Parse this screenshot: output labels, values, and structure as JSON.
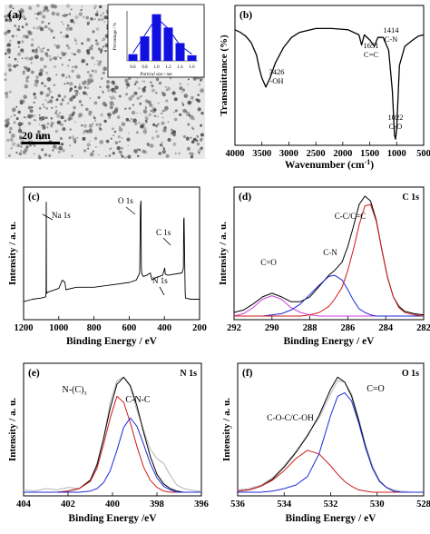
{
  "colors": {
    "black": "#000000",
    "red": "#d01818",
    "blue": "#1e2ad8",
    "magenta": "#d040d8",
    "gray": "#b4b4b4",
    "bar_blue": "#1010e0",
    "tem_light": "#e8e8e8",
    "tem_dark": "#505050"
  },
  "chart_data": [
    {
      "id": "a",
      "type": "image+bar",
      "panel_label": "(a)",
      "scale_bar_label": "20 nm",
      "inset": {
        "type": "bar",
        "ylabel": "Percentage / %",
        "xlabel": "Partical size / nm",
        "x_ticks": [
          "0.6",
          "0.8",
          "1.0",
          "1.2",
          "1.4",
          "1.6"
        ],
        "categories": [
          0.6,
          0.8,
          1.0,
          1.2,
          1.4,
          1.6
        ],
        "values": [
          6,
          22,
          42,
          30,
          16,
          5
        ],
        "trend": [
          7,
          23,
          39,
          29,
          14,
          6
        ],
        "ylim": [
          0,
          45
        ]
      }
    },
    {
      "id": "b",
      "type": "line",
      "panel_label": "(b)",
      "xlabel": "Wavenumber (cm",
      "xlabel_sup": "-1",
      "xlabel_end": ")",
      "ylabel": "Transmittance (%)",
      "xlim": [
        4000,
        500
      ],
      "x_ticks": [
        4000,
        3500,
        3000,
        2500,
        2000,
        1500,
        1000,
        500
      ],
      "ylim": [
        0,
        100
      ],
      "series": [
        {
          "x": [
            4000,
            3900,
            3800,
            3700,
            3600,
            3550,
            3500,
            3426,
            3350,
            3250,
            3100,
            2950,
            2800,
            2500,
            2200,
            1900,
            1700,
            1651,
            1600,
            1500,
            1414,
            1350,
            1250,
            1150,
            1080,
            1040,
            1022,
            1000,
            950,
            850,
            700,
            600,
            500
          ],
          "y": [
            88,
            86,
            83,
            78,
            68,
            58,
            50,
            43,
            50,
            62,
            74,
            82,
            86,
            89,
            89,
            88,
            84,
            76,
            84,
            80,
            75,
            82,
            82,
            72,
            40,
            5,
            2,
            10,
            60,
            75,
            80,
            83,
            84
          ]
        }
      ],
      "annotations": [
        {
          "lines": [
            "3426",
            "-OH"
          ]
        },
        {
          "lines": [
            "1651",
            "C=C"
          ]
        },
        {
          "lines": [
            "1414",
            "C-N"
          ]
        },
        {
          "lines": [
            "1022",
            "C-O"
          ]
        }
      ]
    },
    {
      "id": "c",
      "type": "line",
      "panel_label": "(c)",
      "xlabel": "Binding Energy / eV",
      "ylabel": "Intensity / a. u.",
      "xlim": [
        1200,
        200
      ],
      "x_ticks": [
        1200,
        1000,
        800,
        600,
        400,
        200
      ],
      "ylim": [
        0,
        100
      ],
      "series": [
        {
          "x": [
            1200,
            1150,
            1100,
            1075,
            1072,
            1071,
            1070,
            1068,
            1060,
            1000,
            980,
            965,
            960,
            900,
            800,
            700,
            600,
            560,
            540,
            536,
            533,
            531,
            528,
            520,
            500,
            480,
            470,
            450,
            410,
            402,
            398,
            395,
            380,
            300,
            292,
            290,
            288,
            284,
            282,
            280,
            250,
            200
          ],
          "y": [
            12,
            14,
            15,
            16,
            20,
            95,
            22,
            19,
            20,
            23,
            30,
            28,
            22,
            24,
            24,
            26,
            28,
            30,
            36,
            92,
            96,
            40,
            35,
            33,
            34,
            36,
            30,
            32,
            34,
            38,
            40,
            35,
            34,
            36,
            40,
            80,
            82,
            40,
            20,
            15,
            14,
            14
          ]
        }
      ],
      "annotations": [
        {
          "text": "Na 1s"
        },
        {
          "text": "O 1s"
        },
        {
          "text": "C 1s"
        },
        {
          "text": "N 1s"
        }
      ]
    },
    {
      "id": "d",
      "type": "line",
      "panel_label": "(d)",
      "corner_label": "C 1s",
      "xlabel": "Binding Energy / eV",
      "ylabel": "Intensity / a. u.",
      "xlim": [
        292,
        282
      ],
      "x_ticks": [
        292,
        290,
        288,
        286,
        284
      ],
      "x_tick_label_extra": "282",
      "ylim": [
        0,
        100
      ],
      "x": [
        292,
        291.5,
        291,
        290.5,
        290,
        289.5,
        289,
        288.5,
        288,
        287.5,
        287,
        286.7,
        286.3,
        286,
        285.7,
        285.4,
        285.1,
        284.8,
        284.5,
        284.2,
        283.9,
        283.6,
        283.3,
        283,
        282.5,
        282
      ],
      "series": [
        {
          "color": "black",
          "y": [
            3,
            5,
            10,
            16,
            19,
            16,
            12,
            12,
            16,
            25,
            34,
            38,
            45,
            58,
            75,
            93,
            100,
            96,
            80,
            55,
            32,
            16,
            8,
            4,
            2,
            1
          ]
        },
        {
          "color": "magenta",
          "y": [
            0,
            2,
            7,
            14,
            17,
            14,
            7,
            3,
            1,
            0,
            0,
            0,
            0,
            0,
            0,
            0,
            0,
            0,
            0,
            0,
            0,
            0,
            0,
            0,
            0,
            0
          ]
        },
        {
          "color": "blue",
          "y": [
            0,
            0,
            0,
            0,
            1,
            2,
            5,
            10,
            18,
            26,
            33,
            34,
            30,
            22,
            13,
            6,
            3,
            1,
            0,
            0,
            0,
            0,
            0,
            0,
            0,
            0
          ]
        },
        {
          "color": "red",
          "y": [
            0,
            0,
            0,
            0,
            0,
            0,
            0,
            0,
            1,
            3,
            8,
            14,
            24,
            38,
            56,
            76,
            92,
            93,
            79,
            55,
            32,
            16,
            7,
            3,
            1,
            0
          ]
        }
      ],
      "annotations": [
        {
          "text": "C-C/C=C"
        },
        {
          "text": "C=O"
        },
        {
          "text": "C-N"
        }
      ]
    },
    {
      "id": "e",
      "type": "line",
      "panel_label": "(e)",
      "corner_label": "N 1s",
      "xlabel": "Binding Energy /eV",
      "ylabel": "Intensity / a. u.",
      "xlim": [
        404,
        396
      ],
      "x_ticks": [
        404,
        402,
        400,
        398,
        396
      ],
      "ylim": [
        0,
        100
      ],
      "x": [
        404,
        403.5,
        403,
        402.5,
        402,
        401.5,
        401,
        400.7,
        400.4,
        400.1,
        399.8,
        399.5,
        399.2,
        398.9,
        398.6,
        398.3,
        398,
        397.7,
        397.4,
        397.1,
        396.8,
        396.5,
        396.2,
        396
      ],
      "series": [
        {
          "color": "gray",
          "y": [
            2,
            1,
            3,
            2,
            4,
            3,
            10,
            22,
            45,
            75,
            93,
            96,
            88,
            68,
            52,
            36,
            28,
            24,
            14,
            6,
            3,
            2,
            1,
            1
          ]
        },
        {
          "color": "black",
          "y": [
            0,
            0,
            0,
            0,
            1,
            3,
            10,
            23,
            45,
            70,
            90,
            96,
            89,
            72,
            50,
            30,
            15,
            7,
            3,
            1,
            0,
            0,
            0,
            0
          ]
        },
        {
          "color": "red",
          "y": [
            0,
            0,
            0,
            0,
            1,
            3,
            9,
            20,
            40,
            62,
            80,
            75,
            58,
            38,
            21,
            10,
            4,
            1,
            0,
            0,
            0,
            0,
            0,
            0
          ]
        },
        {
          "color": "blue",
          "y": [
            0,
            0,
            0,
            0,
            0,
            0,
            1,
            3,
            8,
            18,
            35,
            54,
            62,
            55,
            40,
            24,
            12,
            5,
            2,
            0,
            0,
            0,
            0,
            0
          ]
        }
      ],
      "annotations": [
        {
          "text": "N-(C)",
          "sub": "3"
        },
        {
          "text": "C-N-C"
        }
      ]
    },
    {
      "id": "f",
      "type": "line",
      "panel_label": "(f)",
      "corner_label": "O 1s",
      "xlabel": "Binding Energy / eV",
      "ylabel": "Intensity / a. u.",
      "xlim": [
        536,
        528
      ],
      "x_ticks": [
        536,
        534,
        532,
        530,
        528
      ],
      "ylim": [
        0,
        100
      ],
      "x": [
        536,
        535.5,
        535,
        534.5,
        534,
        533.5,
        533,
        532.5,
        532,
        531.7,
        531.4,
        531.1,
        530.8,
        530.5,
        530.2,
        529.9,
        529.6,
        529.3,
        529,
        528.5,
        528
      ],
      "series": [
        {
          "color": "gray",
          "y": [
            2,
            3,
            6,
            12,
            22,
            34,
            48,
            62,
            82,
            93,
            92,
            82,
            62,
            40,
            22,
            10,
            4,
            2,
            1,
            0,
            0
          ]
        },
        {
          "color": "black",
          "y": [
            1,
            2,
            5,
            11,
            21,
            33,
            47,
            64,
            86,
            96,
            92,
            80,
            60,
            38,
            20,
            9,
            4,
            1,
            0,
            0,
            0
          ]
        },
        {
          "color": "red",
          "y": [
            1,
            2,
            5,
            10,
            18,
            28,
            35,
            32,
            22,
            15,
            9,
            5,
            2,
            1,
            0,
            0,
            0,
            0,
            0,
            0,
            0
          ]
        },
        {
          "color": "blue",
          "y": [
            0,
            0,
            0,
            1,
            3,
            6,
            13,
            32,
            64,
            80,
            83,
            76,
            58,
            37,
            20,
            9,
            4,
            1,
            0,
            0,
            0
          ]
        }
      ],
      "annotations": [
        {
          "text": "C-O-C/C-OH"
        },
        {
          "text": "C=O"
        }
      ]
    }
  ]
}
